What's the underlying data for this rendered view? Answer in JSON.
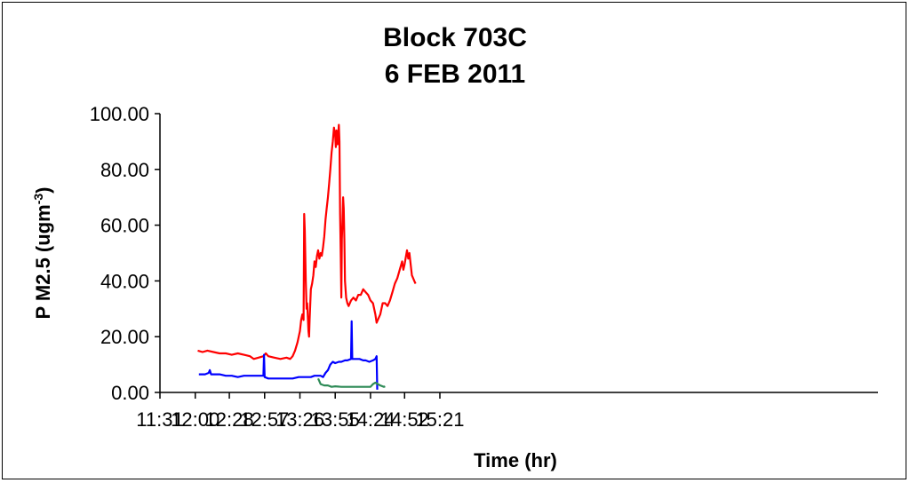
{
  "chart_data": {
    "type": "line",
    "title_line1": "Block 703C",
    "title_line2": "6 FEB 2011",
    "xlabel": "Time (hr)",
    "ylabel_main": "P M2.5 (ugm",
    "ylabel_sup": "-3",
    "ylabel_close": ")",
    "xlim": [
      691,
      1281
    ],
    "ylim": [
      0,
      100
    ],
    "x_ticks": [
      {
        "v": 691,
        "label": "11:31"
      },
      {
        "v": 720,
        "label": "12:00"
      },
      {
        "v": 748,
        "label": "12:28"
      },
      {
        "v": 777,
        "label": "12:57"
      },
      {
        "v": 806,
        "label": "13:26"
      },
      {
        "v": 835,
        "label": "13:55"
      },
      {
        "v": 864,
        "label": "14:24"
      },
      {
        "v": 892,
        "label": "14:52"
      },
      {
        "v": 921,
        "label": "15:21"
      }
    ],
    "y_ticks": [
      {
        "v": 0,
        "label": "0.00"
      },
      {
        "v": 20,
        "label": "20.00"
      },
      {
        "v": 40,
        "label": "40.00"
      },
      {
        "v": 60,
        "label": "60.00"
      },
      {
        "v": 80,
        "label": "80.00"
      },
      {
        "v": 100,
        "label": "100.00"
      }
    ],
    "series": [
      {
        "color": "#ff0000",
        "points": [
          [
            722,
            15
          ],
          [
            726,
            14.5
          ],
          [
            730,
            15
          ],
          [
            735,
            14.5
          ],
          [
            740,
            14
          ],
          [
            745,
            14
          ],
          [
            750,
            13.5
          ],
          [
            755,
            14
          ],
          [
            760,
            13.5
          ],
          [
            765,
            13
          ],
          [
            768,
            12
          ],
          [
            772,
            12.5
          ],
          [
            776,
            13
          ],
          [
            778,
            14
          ],
          [
            780,
            13
          ],
          [
            785,
            12.5
          ],
          [
            790,
            12
          ],
          [
            795,
            12.5
          ],
          [
            798,
            12
          ],
          [
            800,
            13
          ],
          [
            802,
            15
          ],
          [
            804,
            18
          ],
          [
            806,
            22
          ],
          [
            807,
            26
          ],
          [
            808,
            28
          ],
          [
            809,
            26
          ],
          [
            809.5,
            64
          ],
          [
            810,
            58
          ],
          [
            810.8,
            40
          ],
          [
            811.5,
            30
          ],
          [
            812,
            32
          ],
          [
            812.5,
            27
          ],
          [
            813,
            22
          ],
          [
            813.5,
            20
          ],
          [
            814,
            26
          ],
          [
            815,
            37
          ],
          [
            816,
            39
          ],
          [
            817,
            42
          ],
          [
            818,
            47
          ],
          [
            819,
            45
          ],
          [
            820,
            49
          ],
          [
            821,
            51
          ],
          [
            822,
            48
          ],
          [
            823,
            50
          ],
          [
            824,
            49
          ],
          [
            825,
            52
          ],
          [
            826,
            56
          ],
          [
            827,
            62
          ],
          [
            828,
            66
          ],
          [
            829,
            70
          ],
          [
            830,
            75
          ],
          [
            831,
            80
          ],
          [
            832,
            86
          ],
          [
            833,
            90
          ],
          [
            834,
            95
          ],
          [
            835,
            92
          ],
          [
            835.5,
            88
          ],
          [
            836,
            94
          ],
          [
            837,
            89
          ],
          [
            838,
            96
          ],
          [
            838.5,
            90
          ],
          [
            839,
            64
          ],
          [
            839.5,
            50
          ],
          [
            840,
            34
          ],
          [
            840.5,
            55
          ],
          [
            841,
            62
          ],
          [
            841.5,
            70
          ],
          [
            842,
            66
          ],
          [
            842.5,
            55
          ],
          [
            843,
            40
          ],
          [
            844,
            34
          ],
          [
            845,
            32
          ],
          [
            846,
            31
          ],
          [
            848,
            33
          ],
          [
            850,
            34
          ],
          [
            852,
            33
          ],
          [
            854,
            35
          ],
          [
            856,
            35
          ],
          [
            858,
            37
          ],
          [
            860,
            36
          ],
          [
            862,
            35
          ],
          [
            864,
            33
          ],
          [
            866,
            32
          ],
          [
            868,
            28
          ],
          [
            869,
            25
          ],
          [
            870,
            26
          ],
          [
            872,
            28
          ],
          [
            874,
            32
          ],
          [
            876,
            32
          ],
          [
            878,
            31
          ],
          [
            880,
            33
          ],
          [
            882,
            36
          ],
          [
            884,
            39
          ],
          [
            886,
            41
          ],
          [
            888,
            44
          ],
          [
            890,
            47
          ],
          [
            891,
            44
          ],
          [
            892,
            46
          ],
          [
            894,
            51
          ],
          [
            895,
            48
          ],
          [
            896,
            50
          ],
          [
            897,
            46
          ],
          [
            898,
            42
          ],
          [
            899,
            41
          ],
          [
            900,
            40
          ],
          [
            901,
            39
          ]
        ]
      },
      {
        "color": "#0000ff",
        "points": [
          [
            723,
            6.5
          ],
          [
            728,
            6.5
          ],
          [
            731,
            7
          ],
          [
            732,
            8
          ],
          [
            733,
            6.5
          ],
          [
            740,
            6.5
          ],
          [
            745,
            6
          ],
          [
            750,
            6
          ],
          [
            755,
            5.5
          ],
          [
            760,
            6
          ],
          [
            765,
            6
          ],
          [
            768,
            6
          ],
          [
            774,
            6
          ],
          [
            776,
            6
          ],
          [
            776.5,
            13.5
          ],
          [
            777,
            5.5
          ],
          [
            780,
            5
          ],
          [
            785,
            5
          ],
          [
            790,
            5
          ],
          [
            795,
            5
          ],
          [
            800,
            5
          ],
          [
            805,
            5.5
          ],
          [
            810,
            5.5
          ],
          [
            815,
            5.5
          ],
          [
            818,
            6
          ],
          [
            821,
            6
          ],
          [
            823,
            6
          ],
          [
            825,
            5.5
          ],
          [
            827,
            7
          ],
          [
            829,
            8
          ],
          [
            831,
            10
          ],
          [
            833,
            11
          ],
          [
            835,
            10.5
          ],
          [
            838,
            11
          ],
          [
            840,
            11
          ],
          [
            843,
            11.5
          ],
          [
            845,
            11.5
          ],
          [
            848,
            12
          ],
          [
            848.5,
            25.5
          ],
          [
            849,
            12
          ],
          [
            852,
            12
          ],
          [
            855,
            12
          ],
          [
            858,
            11.5
          ],
          [
            860,
            11.5
          ],
          [
            863,
            11
          ],
          [
            866,
            11.5
          ],
          [
            868,
            12
          ],
          [
            869,
            13
          ],
          [
            869.5,
            1
          ]
        ]
      },
      {
        "color": "#2e8b57",
        "points": [
          [
            821,
            5
          ],
          [
            822,
            4
          ],
          [
            823,
            3
          ],
          [
            826,
            2.5
          ],
          [
            829,
            2.5
          ],
          [
            832,
            2
          ],
          [
            835,
            2.2
          ],
          [
            840,
            2
          ],
          [
            845,
            2
          ],
          [
            850,
            2
          ],
          [
            855,
            2
          ],
          [
            860,
            2
          ],
          [
            864,
            2
          ],
          [
            866,
            3
          ],
          [
            868,
            3.5
          ],
          [
            870,
            3
          ],
          [
            872,
            2.5
          ],
          [
            875,
            2
          ],
          [
            876,
            2.2
          ]
        ]
      }
    ]
  }
}
